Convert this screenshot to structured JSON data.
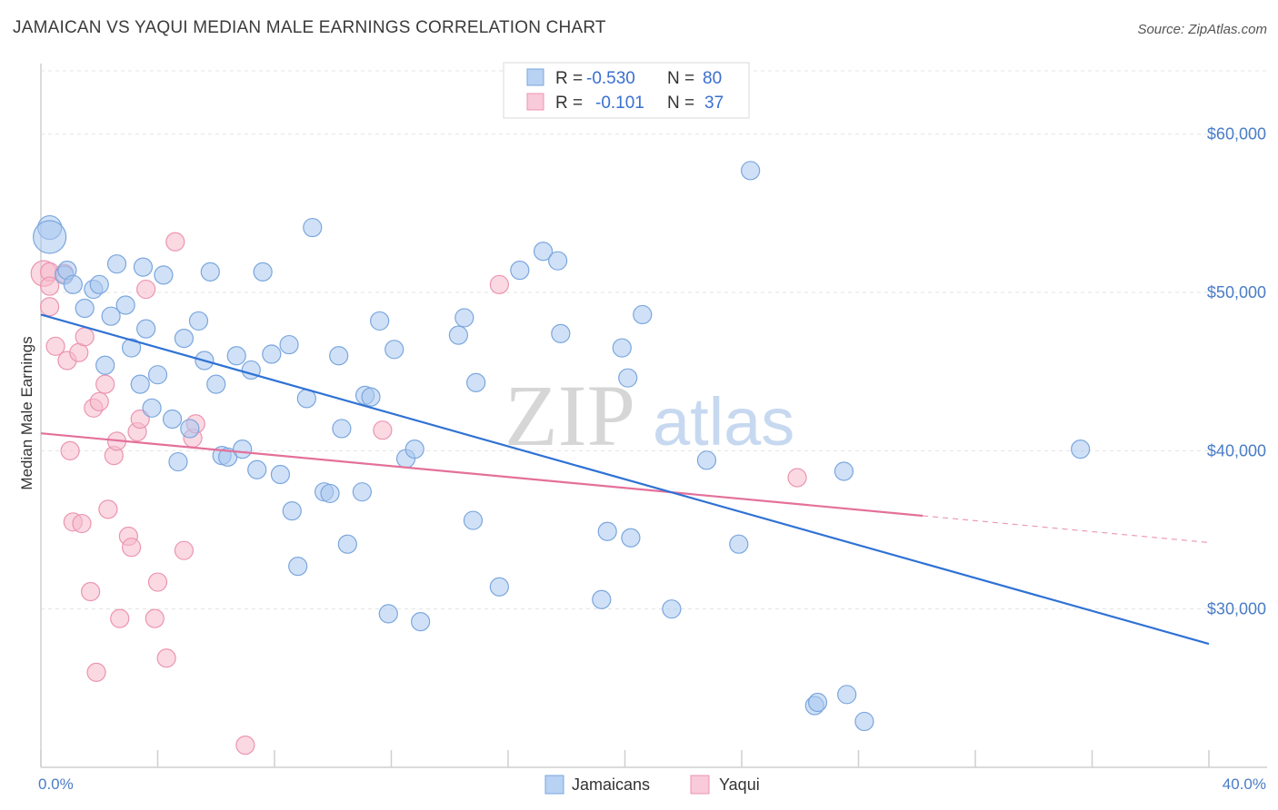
{
  "header": {
    "title": "JAMAICAN VS YAQUI MEDIAN MALE EARNINGS CORRELATION CHART",
    "source": "Source: ZipAtlas.com"
  },
  "watermark": {
    "zip": "ZIP",
    "atlas": "atlas"
  },
  "legend": {
    "jamaicans": {
      "r_label": "R =",
      "r_value": "-0.530",
      "n_label": "N =",
      "n_value": "80"
    },
    "yaqui": {
      "r_label": "R =",
      "r_value": "-0.101",
      "n_label": "N =",
      "n_value": "37"
    }
  },
  "bottom_legend": {
    "jamaicans": "Jamaicans",
    "yaqui": "Yaqui"
  },
  "chart_data": {
    "type": "scatter",
    "title": "JAMAICAN VS YAQUI MEDIAN MALE EARNINGS CORRELATION CHART",
    "xlabel": "",
    "ylabel": "Median Male Earnings",
    "xlim": [
      0,
      40
    ],
    "ylim": [
      20000,
      64000
    ],
    "x_tick_labels": {
      "min": "0.0%",
      "max": "40.0%"
    },
    "y_ticks": [
      {
        "value": 30000,
        "label": "$30,000"
      },
      {
        "value": 40000,
        "label": "$40,000"
      },
      {
        "value": 50000,
        "label": "$50,000"
      },
      {
        "value": 60000,
        "label": "$60,000"
      }
    ],
    "colors": {
      "jamaicans_fill": "#a9c8f0",
      "jamaicans_stroke": "#7aa6dd",
      "jamaicans_line": "#2f72d4",
      "yaqui_fill": "#f6b9cc",
      "yaqui_stroke": "#ec94b0",
      "yaqui_line": "#e4709a"
    },
    "series": [
      {
        "name": "Jamaicans",
        "trend": {
          "x0": 0,
          "y0": 48600,
          "x1": 40,
          "y1": 27800,
          "solid_to": 40
        },
        "points": [
          [
            0.3,
            54100,
            13
          ],
          [
            0.3,
            53500,
            18
          ],
          [
            0.8,
            51100,
            10
          ],
          [
            0.9,
            51400,
            10
          ],
          [
            1.1,
            50500,
            10
          ],
          [
            1.5,
            49000,
            10
          ],
          [
            1.8,
            50200,
            10
          ],
          [
            2.0,
            50500,
            10
          ],
          [
            2.4,
            48500,
            10
          ],
          [
            2.6,
            51800,
            10
          ],
          [
            2.9,
            49200,
            10
          ],
          [
            3.1,
            46500,
            10
          ],
          [
            2.2,
            45400,
            10
          ],
          [
            3.4,
            44200,
            10
          ],
          [
            3.5,
            51600,
            10
          ],
          [
            3.6,
            47700,
            10
          ],
          [
            3.8,
            42700,
            10
          ],
          [
            4.0,
            44800,
            10
          ],
          [
            4.2,
            51100,
            10
          ],
          [
            4.5,
            42000,
            10
          ],
          [
            4.7,
            39300,
            10
          ],
          [
            4.9,
            47100,
            10
          ],
          [
            5.1,
            41400,
            10
          ],
          [
            5.4,
            48200,
            10
          ],
          [
            5.6,
            45700,
            10
          ],
          [
            5.8,
            51300,
            10
          ],
          [
            6.0,
            44200,
            10
          ],
          [
            6.2,
            39700,
            10
          ],
          [
            6.4,
            39600,
            10
          ],
          [
            6.7,
            46000,
            10
          ],
          [
            6.9,
            40100,
            10
          ],
          [
            7.2,
            45100,
            10
          ],
          [
            7.4,
            38800,
            10
          ],
          [
            7.6,
            51300,
            10
          ],
          [
            7.9,
            46100,
            10
          ],
          [
            8.2,
            38500,
            10
          ],
          [
            8.5,
            46700,
            10
          ],
          [
            8.6,
            36200,
            10
          ],
          [
            8.8,
            32700,
            10
          ],
          [
            9.1,
            43300,
            10
          ],
          [
            9.3,
            54100,
            10
          ],
          [
            9.7,
            37400,
            10
          ],
          [
            9.9,
            37300,
            10
          ],
          [
            10.2,
            46000,
            10
          ],
          [
            10.3,
            41400,
            10
          ],
          [
            10.5,
            34100,
            10
          ],
          [
            11.0,
            37400,
            10
          ],
          [
            11.1,
            43500,
            10
          ],
          [
            11.3,
            43400,
            10
          ],
          [
            11.6,
            48200,
            10
          ],
          [
            11.9,
            29700,
            10
          ],
          [
            12.1,
            46400,
            10
          ],
          [
            12.5,
            39500,
            10
          ],
          [
            12.8,
            40100,
            10
          ],
          [
            13.0,
            29200,
            10
          ],
          [
            14.3,
            47300,
            10
          ],
          [
            14.5,
            48400,
            10
          ],
          [
            14.8,
            35600,
            10
          ],
          [
            14.9,
            44300,
            10
          ],
          [
            15.7,
            31400,
            10
          ],
          [
            16.4,
            51400,
            10
          ],
          [
            17.2,
            52600,
            10
          ],
          [
            17.7,
            52000,
            10
          ],
          [
            17.8,
            47400,
            10
          ],
          [
            19.2,
            30600,
            10
          ],
          [
            19.4,
            34900,
            10
          ],
          [
            19.9,
            46500,
            10
          ],
          [
            20.1,
            44600,
            10
          ],
          [
            20.2,
            34500,
            10
          ],
          [
            20.6,
            48600,
            10
          ],
          [
            21.6,
            30000,
            10
          ],
          [
            22.8,
            39400,
            10
          ],
          [
            23.9,
            34100,
            10
          ],
          [
            24.3,
            57700,
            10
          ],
          [
            26.5,
            23900,
            10
          ],
          [
            26.6,
            24100,
            10
          ],
          [
            27.5,
            38700,
            10
          ],
          [
            27.6,
            24600,
            10
          ],
          [
            28.2,
            22900,
            10
          ],
          [
            35.6,
            40100,
            10
          ]
        ]
      },
      {
        "name": "Yaqui",
        "trend": {
          "x0": 0,
          "y0": 41100,
          "x1": 40,
          "y1": 34200,
          "solid_to": 30.2
        },
        "points": [
          [
            0.1,
            51200,
            14
          ],
          [
            0.3,
            51300,
            10
          ],
          [
            0.3,
            49100,
            10
          ],
          [
            0.3,
            50400,
            10
          ],
          [
            0.5,
            46600,
            10
          ],
          [
            0.8,
            51200,
            10
          ],
          [
            0.9,
            45700,
            10
          ],
          [
            1.0,
            40000,
            10
          ],
          [
            1.1,
            35500,
            10
          ],
          [
            1.3,
            46200,
            10
          ],
          [
            1.4,
            35400,
            10
          ],
          [
            1.5,
            47200,
            10
          ],
          [
            1.7,
            31100,
            10
          ],
          [
            1.8,
            42700,
            10
          ],
          [
            1.9,
            26000,
            10
          ],
          [
            2.0,
            43100,
            10
          ],
          [
            2.2,
            44200,
            10
          ],
          [
            2.3,
            36300,
            10
          ],
          [
            2.5,
            39700,
            10
          ],
          [
            2.6,
            40600,
            10
          ],
          [
            2.7,
            29400,
            10
          ],
          [
            3.0,
            34600,
            10
          ],
          [
            3.1,
            33900,
            10
          ],
          [
            3.3,
            41200,
            10
          ],
          [
            3.4,
            42000,
            10
          ],
          [
            3.6,
            50200,
            10
          ],
          [
            3.9,
            29400,
            10
          ],
          [
            4.0,
            31700,
            10
          ],
          [
            4.3,
            26900,
            10
          ],
          [
            4.6,
            53200,
            10
          ],
          [
            4.9,
            33700,
            10
          ],
          [
            5.2,
            40800,
            10
          ],
          [
            5.3,
            41700,
            10
          ],
          [
            7.0,
            21400,
            10
          ],
          [
            11.7,
            41300,
            10
          ],
          [
            15.7,
            50500,
            10
          ],
          [
            25.9,
            38300,
            10
          ]
        ]
      }
    ]
  }
}
